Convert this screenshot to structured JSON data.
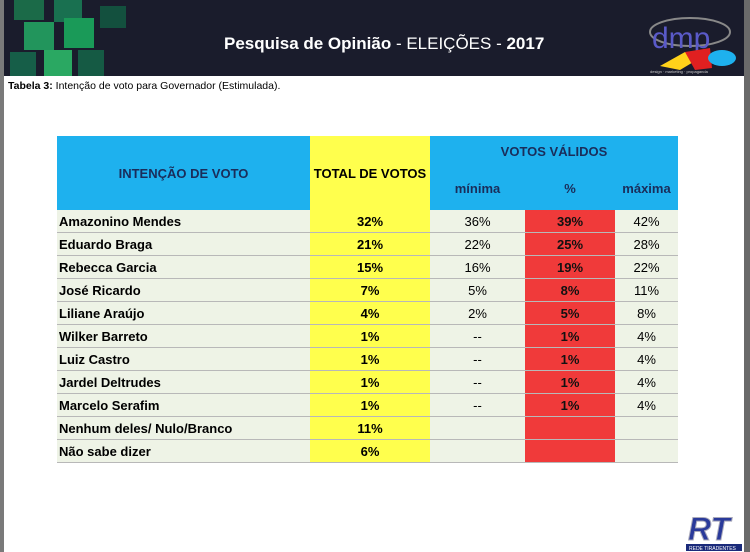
{
  "header": {
    "title_bold": "Pesquisa de Opinião",
    "title_rest": " - ELEIÇÕES - ",
    "year": "2017",
    "logo_text": "dmp",
    "logo_tagline": "design · marketing · propaganda"
  },
  "caption": {
    "label": "Tabela  3:",
    "text": " Intenção de voto para Governador (Estimulada)."
  },
  "table": {
    "headers": {
      "intencao": "INTENÇÃO DE VOTO",
      "total": "TOTAL DE VOTOS",
      "validos": "VOTOS VÁLIDOS",
      "minima": "mínima",
      "pct": "%",
      "maxima": "máxima"
    },
    "rows": [
      {
        "name": "Amazonino Mendes",
        "total": "32%",
        "min": "36%",
        "pct": "39%",
        "max": "42%"
      },
      {
        "name": "Eduardo Braga",
        "total": "21%",
        "min": "22%",
        "pct": "25%",
        "max": "28%"
      },
      {
        "name": "Rebecca Garcia",
        "total": "15%",
        "min": "16%",
        "pct": "19%",
        "max": "22%"
      },
      {
        "name": "José Ricardo",
        "total": "7%",
        "min": "5%",
        "pct": "8%",
        "max": "11%"
      },
      {
        "name": "Liliane Araújo",
        "total": "4%",
        "min": "2%",
        "pct": "5%",
        "max": "8%"
      },
      {
        "name": "Wilker Barreto",
        "total": "1%",
        "min": "--",
        "pct": "1%",
        "max": "4%"
      },
      {
        "name": "Luiz Castro",
        "total": "1%",
        "min": "--",
        "pct": "1%",
        "max": "4%"
      },
      {
        "name": "Jardel Deltrudes",
        "total": "1%",
        "min": "--",
        "pct": "1%",
        "max": "4%"
      },
      {
        "name": "Marcelo Serafim",
        "total": "1%",
        "min": "--",
        "pct": "1%",
        "max": "4%"
      },
      {
        "name": "Nenhum deles/ Nulo/Branco",
        "total": "11%",
        "min": "",
        "pct": "",
        "max": ""
      },
      {
        "name": "Não sabe dizer",
        "total": "6%",
        "min": "",
        "pct": "",
        "max": ""
      }
    ]
  },
  "footer_logo": {
    "text": "RT",
    "tagline": "REDE TIRADENTES"
  },
  "colors": {
    "header_bg": "#1a1c2c",
    "table_header": "#1eb1ee",
    "total_col": "#ffff4d",
    "pct_col": "#f03a3a",
    "row_bg": "#eef3e6"
  }
}
